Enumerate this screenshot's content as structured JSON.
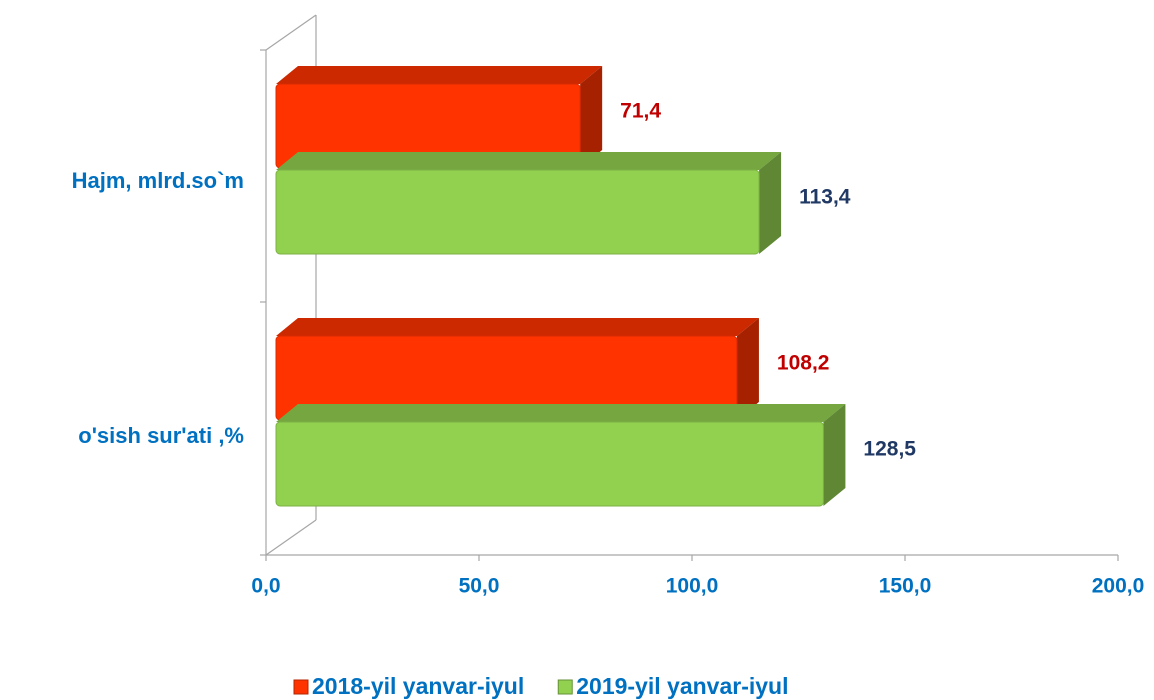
{
  "chart_data": {
    "type": "bar3d_horizontal",
    "categories": [
      "Hajm, mlrd.so`m",
      "o'sish  sur'ati ,%"
    ],
    "series": [
      {
        "name": "2018-yil yanvar-iyul",
        "color": "#ff3300",
        "values": [
          71.4,
          108.2
        ],
        "value_labels": [
          "71,4",
          "108,2"
        ],
        "label_color": "#c00000"
      },
      {
        "name": "2019-yil yanvar-iyul",
        "color": "#92d050",
        "values": [
          113.4,
          128.5
        ],
        "value_labels": [
          "113,4",
          "128,5"
        ],
        "label_color": "#1f3864"
      }
    ],
    "xlim": [
      0,
      200
    ],
    "xticks": [
      {
        "value": 0,
        "label": "0,0"
      },
      {
        "value": 50,
        "label": "50,0"
      },
      {
        "value": 100,
        "label": "100,0"
      },
      {
        "value": 150,
        "label": "150,0"
      },
      {
        "value": 200,
        "label": "200,0"
      }
    ],
    "legend": "bottom"
  }
}
